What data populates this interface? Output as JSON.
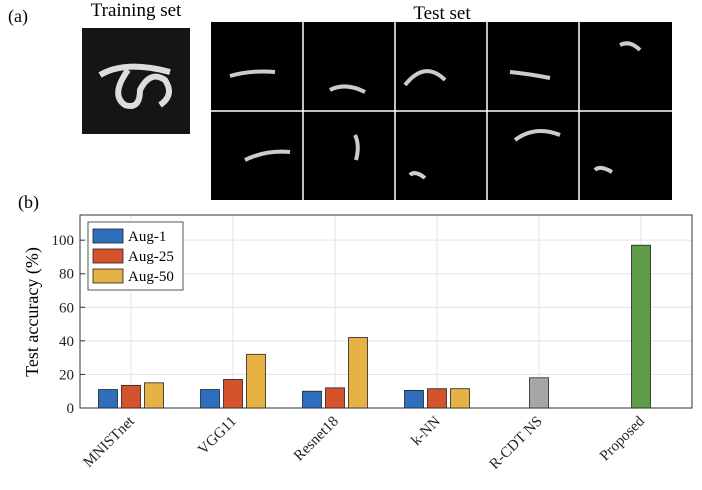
{
  "panel_a": {
    "label": "(a)",
    "training_title": "Training set",
    "test_title": "Test set"
  },
  "panel_b": {
    "label": "(b)"
  },
  "chart_data": {
    "type": "bar",
    "y_label": "Test accuracy (%)",
    "categories": [
      "MNISTnet",
      "VGG11",
      "Resnet18",
      "k-NN",
      "R-CDT NS",
      "Proposed"
    ],
    "series": [
      {
        "name": "Aug-1",
        "color": "#2e6fbd",
        "values": [
          11,
          11,
          10,
          10.5,
          null,
          null
        ]
      },
      {
        "name": "Aug-25",
        "color": "#d5532a",
        "values": [
          13.5,
          17,
          12,
          11.5,
          null,
          null
        ]
      },
      {
        "name": "Aug-50",
        "color": "#e5b243",
        "values": [
          15,
          32,
          42,
          11.5,
          null,
          null
        ]
      },
      {
        "color": "#a6a6a6",
        "values": [
          null,
          null,
          null,
          null,
          18,
          null
        ]
      },
      {
        "color": "#5e9c48",
        "values": [
          null,
          null,
          null,
          null,
          null,
          97
        ]
      }
    ],
    "ylim": [
      0,
      115
    ],
    "yticks": [
      0,
      20,
      40,
      60,
      80,
      100
    ],
    "grid": true,
    "legend": "upper left"
  }
}
